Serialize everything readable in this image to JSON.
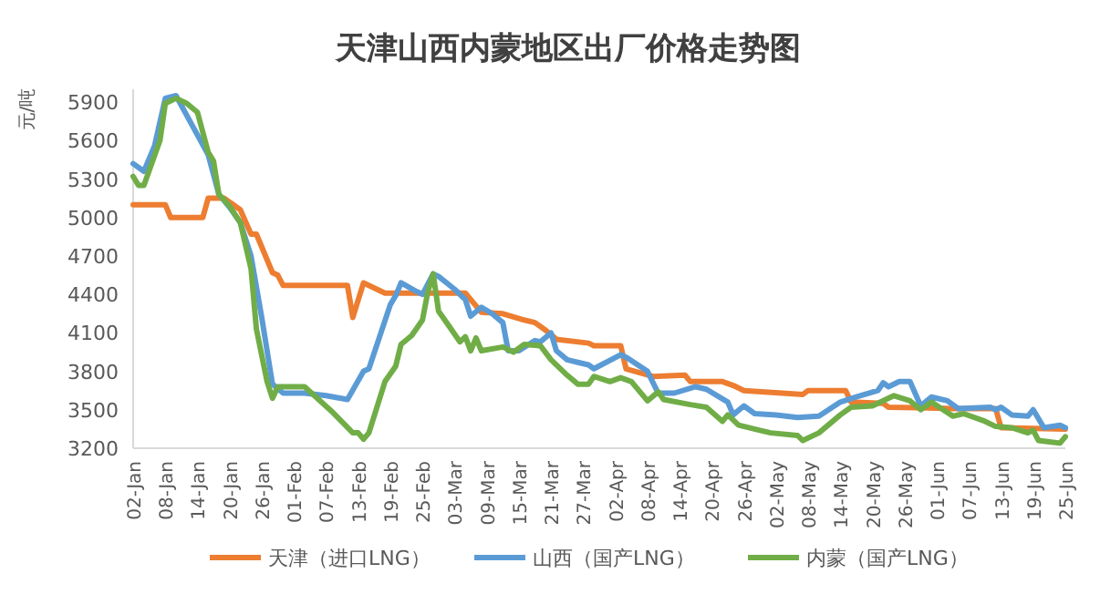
{
  "chart_data": {
    "type": "line",
    "title": "天津山西内蒙地区出厂价格走势图",
    "ylabel": "元/吨",
    "xlim": [
      "--01-02",
      "--06-25"
    ],
    "xticks": [
      {
        "value": "--01-02",
        "label": "02-Jan"
      },
      {
        "value": "--01-08",
        "label": "08-Jan"
      },
      {
        "value": "--01-14",
        "label": "14-Jan"
      },
      {
        "value": "--01-20",
        "label": "20-Jan"
      },
      {
        "value": "--01-26",
        "label": "26-Jan"
      },
      {
        "value": "--02-01",
        "label": "01-Feb"
      },
      {
        "value": "--02-07",
        "label": "07-Feb"
      },
      {
        "value": "--02-13",
        "label": "13-Feb"
      },
      {
        "value": "--02-19",
        "label": "19-Feb"
      },
      {
        "value": "--02-25",
        "label": "25-Feb"
      },
      {
        "value": "--03-03",
        "label": "03-Mar"
      },
      {
        "value": "--03-09",
        "label": "09-Mar"
      },
      {
        "value": "--03-15",
        "label": "15-Mar"
      },
      {
        "value": "--03-21",
        "label": "21-Mar"
      },
      {
        "value": "--03-27",
        "label": "27-Mar"
      },
      {
        "value": "--04-02",
        "label": "02-Apr"
      },
      {
        "value": "--04-08",
        "label": "08-Apr"
      },
      {
        "value": "--04-14",
        "label": "14-Apr"
      },
      {
        "value": "--04-20",
        "label": "20-Apr"
      },
      {
        "value": "--04-26",
        "label": "26-Apr"
      },
      {
        "value": "--05-02",
        "label": "02-May"
      },
      {
        "value": "--05-08",
        "label": "08-May"
      },
      {
        "value": "--05-14",
        "label": "14-May"
      },
      {
        "value": "--05-20",
        "label": "20-May"
      },
      {
        "value": "--05-26",
        "label": "26-May"
      },
      {
        "value": "--06-01",
        "label": "01-Jun"
      },
      {
        "value": "--06-07",
        "label": "07-Jun"
      },
      {
        "value": "--06-13",
        "label": "13-Jun"
      },
      {
        "value": "--06-19",
        "label": "19-Jun"
      },
      {
        "value": "--06-25",
        "label": "25-Jun"
      }
    ],
    "ylim": [
      3200,
      6000
    ],
    "yticks": [
      3200,
      3500,
      3800,
      4100,
      4400,
      4700,
      5000,
      5300,
      5600,
      5900
    ],
    "grid": false,
    "legend": "bottom",
    "marker": "none",
    "line_style": "solid",
    "series": [
      {
        "name": "天津（进口LNG）",
        "color": "#ed7d31",
        "x": [
          "--01-02",
          "--01-08",
          "--01-09",
          "--01-15",
          "--01-16",
          "--01-19",
          "--01-22",
          "--01-24",
          "--01-25",
          "--01-28",
          "--01-29",
          "--01-30",
          "--02-11",
          "--02-12",
          "--02-14",
          "--02-18",
          "--03-05",
          "--03-08",
          "--03-12",
          "--03-16",
          "--03-18",
          "--03-20",
          "--03-22",
          "--03-28",
          "--03-29",
          "--04-03",
          "--04-04",
          "--04-09",
          "--04-15",
          "--04-16",
          "--04-22",
          "--04-24",
          "--04-26",
          "--05-07",
          "--05-08",
          "--05-15",
          "--05-16",
          "--05-22",
          "--05-23",
          "--06-04",
          "--06-12",
          "--06-13",
          "--06-25"
        ],
        "values": [
          5100,
          5100,
          5000,
          5000,
          5150,
          5150,
          5060,
          4870,
          4870,
          4570,
          4550,
          4470,
          4470,
          4220,
          4490,
          4410,
          4410,
          4260,
          4250,
          4200,
          4180,
          4120,
          4050,
          4020,
          4000,
          4000,
          3820,
          3760,
          3770,
          3720,
          3720,
          3690,
          3650,
          3620,
          3650,
          3650,
          3560,
          3550,
          3520,
          3510,
          3510,
          3360,
          3350
        ]
      },
      {
        "name": "山西（国产LNG）",
        "color": "#5b9bd5",
        "x": [
          "--01-02",
          "--01-04",
          "--01-06",
          "--01-08",
          "--01-10",
          "--01-13",
          "--01-16",
          "--01-18",
          "--01-20",
          "--01-22",
          "--01-24",
          "--01-26",
          "--01-28",
          "--01-30",
          "--02-03",
          "--02-07",
          "--02-11",
          "--02-14",
          "--02-15",
          "--02-19",
          "--02-20",
          "--02-21",
          "--02-24",
          "--02-25",
          "--02-27",
          "--02-28",
          "--03-03",
          "--03-05",
          "--03-06",
          "--03-08",
          "--03-10",
          "--03-12",
          "--03-13",
          "--03-15",
          "--03-18",
          "--03-19",
          "--03-21",
          "--03-22",
          "--03-24",
          "--03-26",
          "--03-28",
          "--03-29",
          "--04-03",
          "--04-04",
          "--04-08",
          "--04-10",
          "--04-13",
          "--04-17",
          "--04-19",
          "--04-23",
          "--04-24",
          "--04-26",
          "--04-28",
          "--05-02",
          "--05-06",
          "--05-10",
          "--05-14",
          "--05-17",
          "--05-21",
          "--05-22",
          "--05-23",
          "--05-25",
          "--05-27",
          "--05-29",
          "--05-31",
          "--06-03",
          "--06-05",
          "--06-11",
          "--06-12",
          "--06-13",
          "--06-15",
          "--06-18",
          "--06-19",
          "--06-21",
          "--06-24",
          "--06-25"
        ],
        "values": [
          5420,
          5360,
          5560,
          5930,
          5950,
          5720,
          5490,
          5180,
          5080,
          4960,
          4700,
          4220,
          3700,
          3630,
          3630,
          3610,
          3580,
          3800,
          3820,
          4320,
          4390,
          4490,
          4420,
          4400,
          4560,
          4540,
          4440,
          4360,
          4230,
          4300,
          4250,
          4180,
          3960,
          3960,
          4040,
          4030,
          4100,
          3960,
          3890,
          3870,
          3850,
          3820,
          3930,
          3910,
          3800,
          3630,
          3630,
          3680,
          3660,
          3560,
          3460,
          3530,
          3470,
          3460,
          3440,
          3450,
          3560,
          3600,
          3650,
          3710,
          3680,
          3720,
          3720,
          3530,
          3600,
          3570,
          3510,
          3520,
          3500,
          3520,
          3460,
          3450,
          3500,
          3360,
          3380,
          3360
        ]
      },
      {
        "name": "内蒙（国产LNG）",
        "color": "#70ad47",
        "x": [
          "--01-02",
          "--01-03",
          "--01-04",
          "--01-07",
          "--01-08",
          "--01-10",
          "--01-12",
          "--01-14",
          "--01-16",
          "--01-17",
          "--01-18",
          "--01-20",
          "--01-22",
          "--01-24",
          "--01-25",
          "--01-27",
          "--01-28",
          "--01-29",
          "--02-03",
          "--02-08",
          "--02-12",
          "--02-13",
          "--02-14",
          "--02-15",
          "--02-18",
          "--02-20",
          "--02-21",
          "--02-23",
          "--02-25",
          "--02-26",
          "--02-27",
          "--02-28",
          "--03-02",
          "--03-04",
          "--03-05",
          "--03-06",
          "--03-07",
          "--03-08",
          "--03-12",
          "--03-14",
          "--03-16",
          "--03-19",
          "--03-21",
          "--03-24",
          "--03-26",
          "--03-28",
          "--03-29",
          "--04-01",
          "--04-03",
          "--04-05",
          "--04-08",
          "--04-10",
          "--04-11",
          "--04-16",
          "--04-19",
          "--04-22",
          "--04-23",
          "--04-25",
          "--04-29",
          "--05-01",
          "--05-06",
          "--05-07",
          "--05-10",
          "--05-14",
          "--05-16",
          "--05-20",
          "--05-24",
          "--05-27",
          "--05-29",
          "--05-31",
          "--06-04",
          "--06-06",
          "--06-10",
          "--06-12",
          "--06-15",
          "--06-18",
          "--06-19",
          "--06-20",
          "--06-22",
          "--06-24",
          "--06-25"
        ],
        "values": [
          5320,
          5250,
          5250,
          5600,
          5890,
          5930,
          5890,
          5820,
          5510,
          5440,
          5180,
          5090,
          4960,
          4600,
          4130,
          3720,
          3590,
          3680,
          3680,
          3490,
          3320,
          3320,
          3270,
          3320,
          3720,
          3840,
          4010,
          4080,
          4200,
          4420,
          4560,
          4270,
          4150,
          4030,
          4070,
          3960,
          4060,
          3960,
          3990,
          3950,
          4010,
          4000,
          3890,
          3770,
          3700,
          3700,
          3760,
          3720,
          3750,
          3720,
          3570,
          3640,
          3580,
          3540,
          3520,
          3410,
          3460,
          3380,
          3340,
          3320,
          3300,
          3260,
          3320,
          3460,
          3520,
          3530,
          3610,
          3570,
          3500,
          3560,
          3450,
          3470,
          3410,
          3370,
          3360,
          3320,
          3340,
          3260,
          3250,
          3240,
          3290
        ]
      }
    ]
  }
}
